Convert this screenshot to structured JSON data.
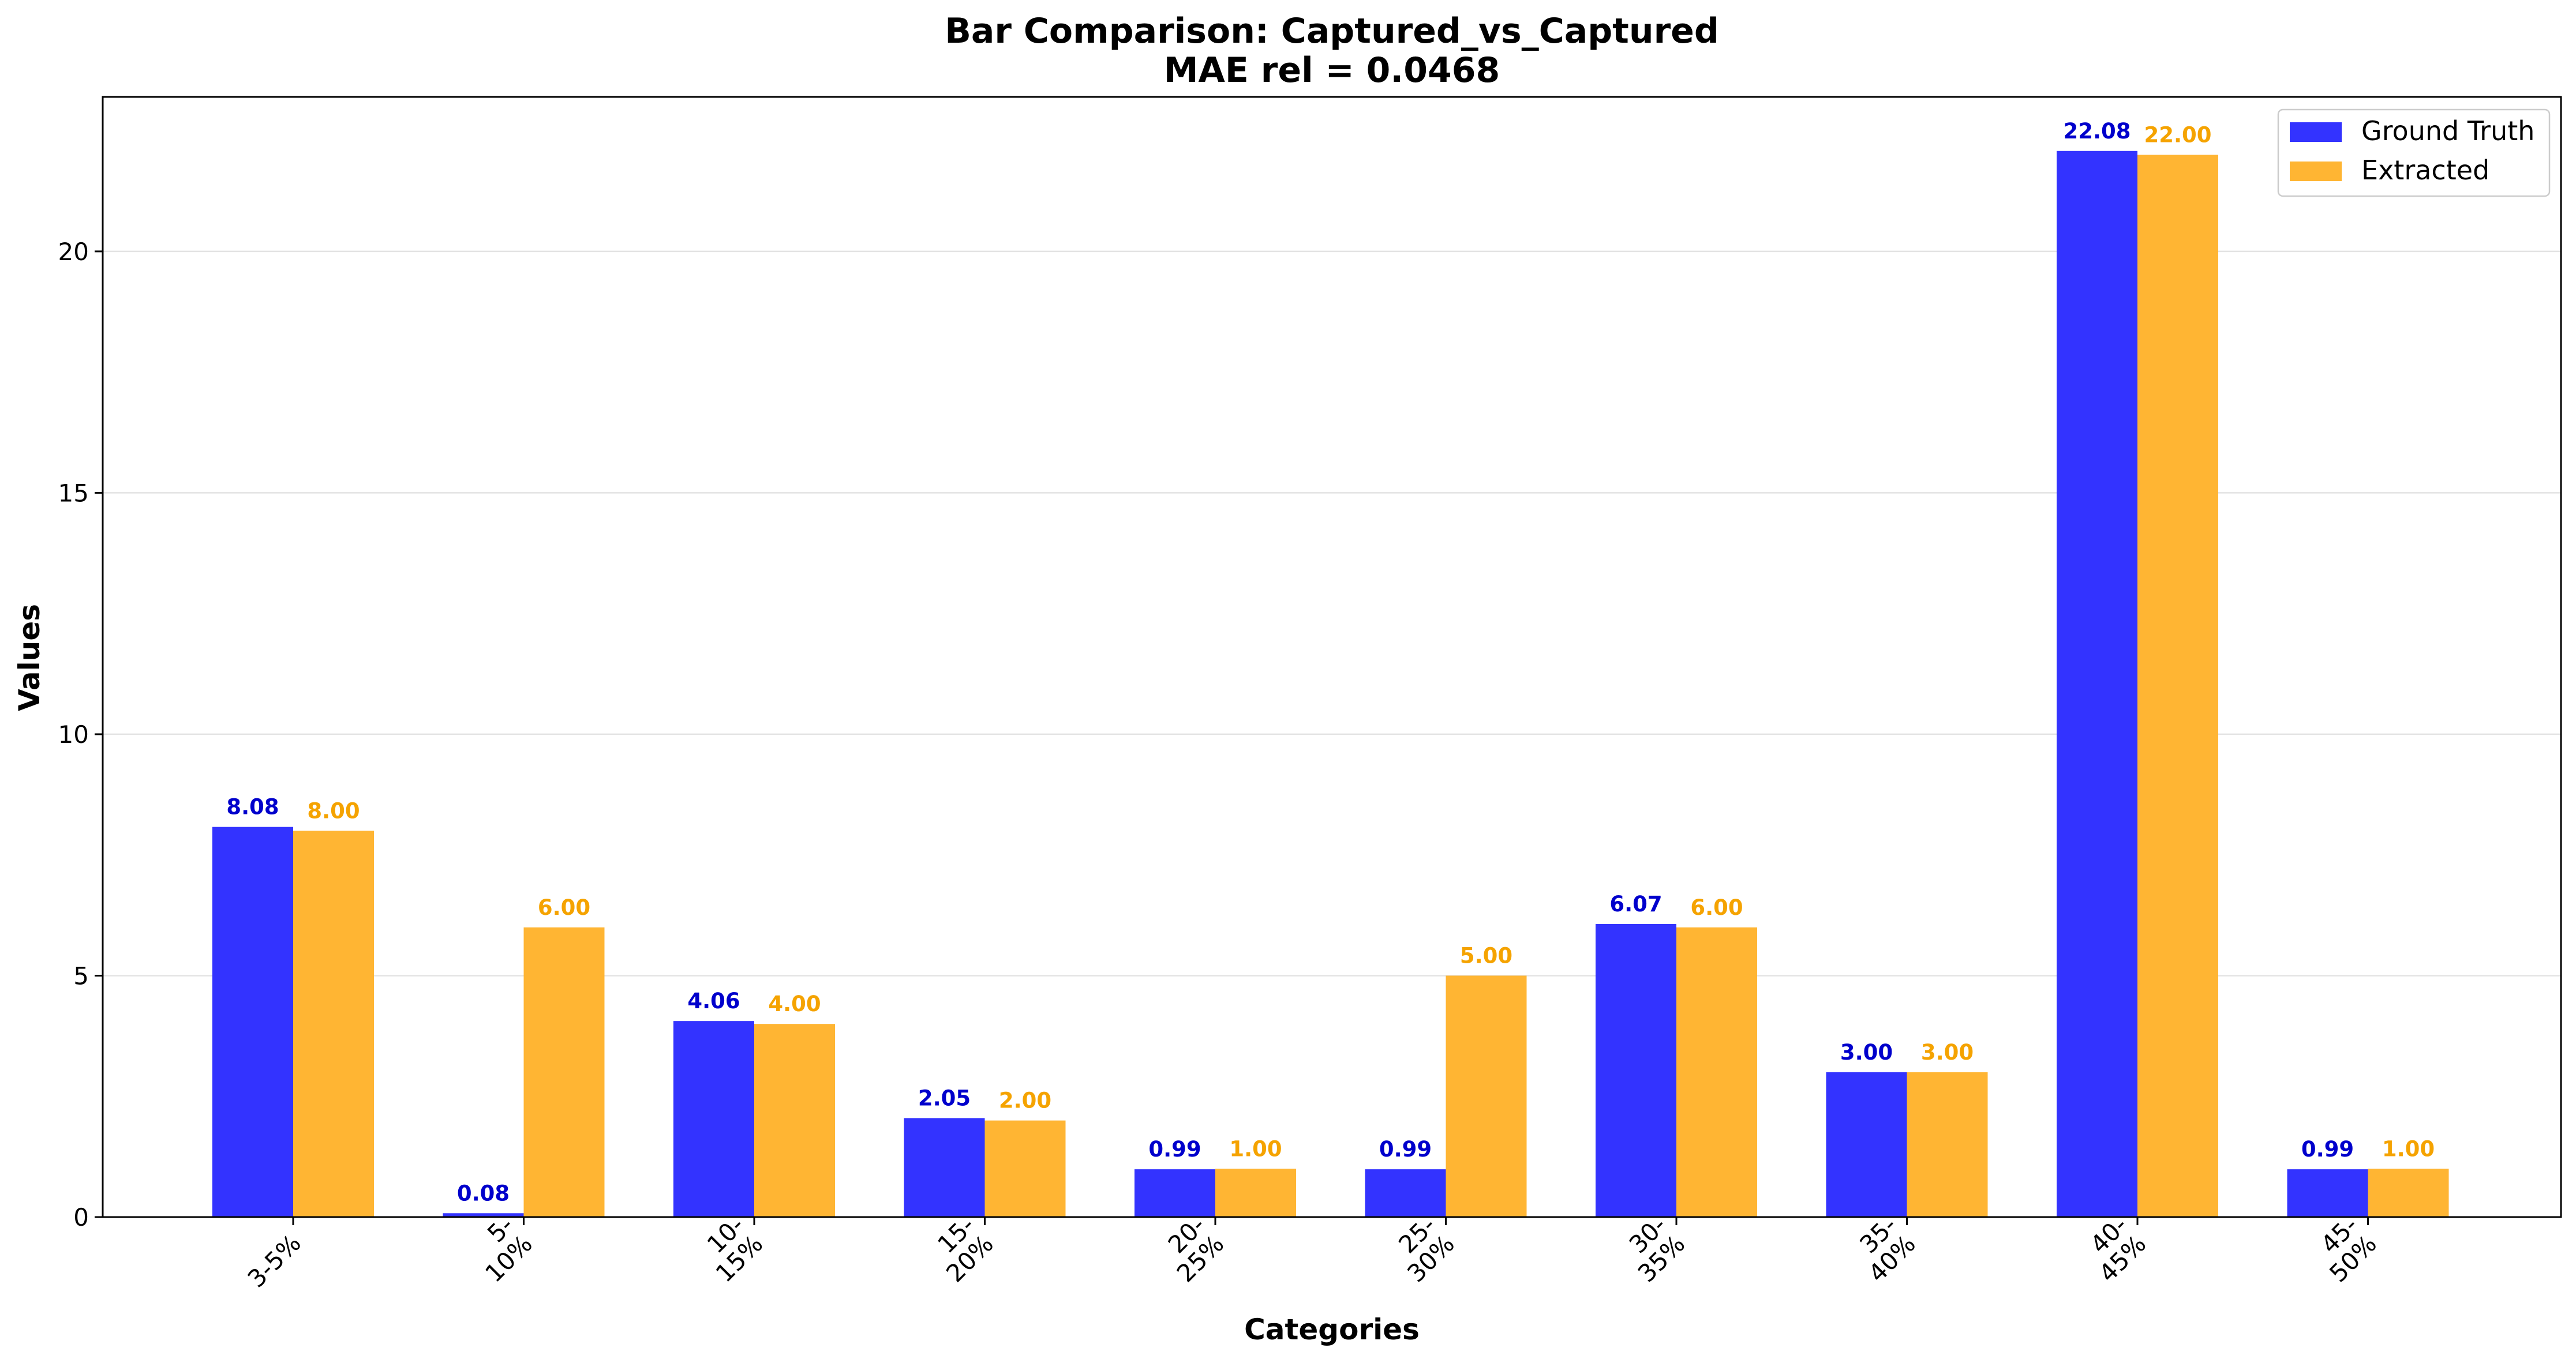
{
  "chart_data": {
    "type": "bar",
    "title": "Bar Comparison: Captured_vs_Captured",
    "subtitle": "MAE rel = 0.0468",
    "xlabel": "Categories",
    "ylabel": "Values",
    "categories": [
      [
        "3-5%"
      ],
      [
        "5-",
        "10%"
      ],
      [
        "10-",
        "15%"
      ],
      [
        "15-",
        "20%"
      ],
      [
        "20-",
        "25%"
      ],
      [
        "25-",
        "30%"
      ],
      [
        "30-",
        "35%"
      ],
      [
        "35-",
        "40%"
      ],
      [
        "40-",
        "45%"
      ],
      [
        "45-",
        "50%"
      ]
    ],
    "series": [
      {
        "name": "Ground Truth",
        "color": "#3333ff",
        "label_color": "#0000cc",
        "values": [
          8.08,
          0.08,
          4.06,
          2.05,
          0.99,
          0.99,
          6.07,
          3.0,
          22.08,
          0.99
        ],
        "labels": [
          "8.08",
          "0.08",
          "4.06",
          "2.05",
          "0.99",
          "0.99",
          "6.07",
          "3.00",
          "22.08",
          "0.99"
        ]
      },
      {
        "name": "Extracted",
        "color": "#ffb533",
        "label_color": "#f5a300",
        "values": [
          8.0,
          6.0,
          4.0,
          2.0,
          1.0,
          5.0,
          6.0,
          3.0,
          22.0,
          1.0
        ],
        "labels": [
          "8.00",
          "6.00",
          "4.00",
          "2.00",
          "1.00",
          "5.00",
          "6.00",
          "3.00",
          "22.00",
          "1.00"
        ]
      }
    ],
    "ylim": [
      0,
      23.2
    ],
    "yticks": [
      0,
      5,
      10,
      15,
      20
    ],
    "grid": "horizontal",
    "legend": "top-right"
  }
}
